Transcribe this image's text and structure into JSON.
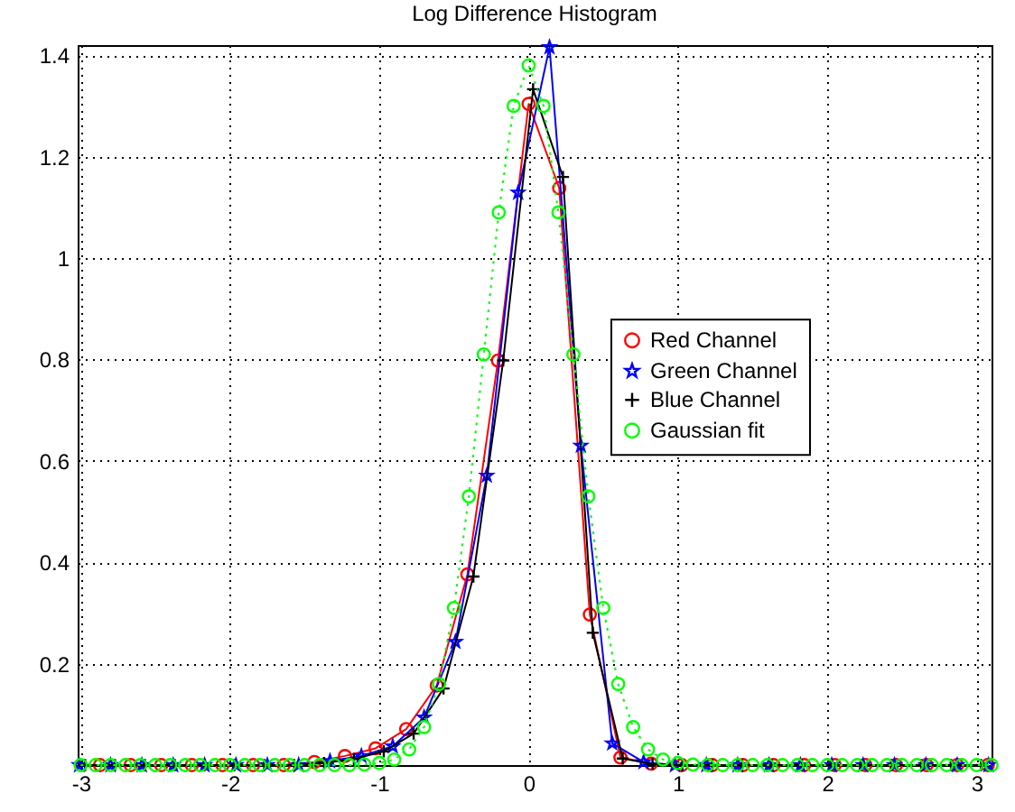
{
  "chart_data": {
    "type": "line",
    "title": "Log Difference Histogram",
    "xlim": [
      -3.02,
      3.1
    ],
    "xticks": [
      -3,
      -2,
      -1,
      0,
      1,
      2,
      3
    ],
    "ylim": [
      0,
      1.42
    ],
    "yticks": [
      {
        "value": 0,
        "label": null
      },
      0.2,
      0.4,
      0.6,
      0.8,
      1,
      1.2,
      1.4
    ],
    "grid": true,
    "legend": "right",
    "series": [
      {
        "name": "Red Channel",
        "color": "#ff0000",
        "marker": "circle",
        "line_style": "solid",
        "x": [
          -2.87,
          -2.665,
          -2.46,
          -2.255,
          -2.05,
          -1.845,
          -1.64,
          -1.435,
          -1.23,
          -1.025,
          -0.82,
          -0.615,
          -0.41,
          -0.205,
          0,
          0.205,
          0.41,
          0.615,
          0.82,
          1.025,
          1.23,
          1.435,
          1.64,
          1.845,
          2.05,
          2.255,
          2.46,
          2.665,
          2.87,
          3.075
        ],
        "values": [
          0,
          0,
          0,
          0,
          0,
          0,
          0,
          0.006,
          0.018,
          0.033,
          0.071,
          0.157,
          0.376,
          0.798,
          1.304,
          1.138,
          0.297,
          0.015,
          0.003,
          0,
          0,
          0,
          0,
          0,
          0,
          0,
          0,
          0,
          0,
          0
        ]
      },
      {
        "name": "Green Channel",
        "color": "#0000ff",
        "marker": "star",
        "line_style": "solid",
        "x": [
          -3.01,
          -2.8,
          -2.59,
          -2.38,
          -2.17,
          -1.96,
          -1.75,
          -1.54,
          -1.33,
          -1.12,
          -0.91,
          -0.7,
          -0.49,
          -0.28,
          -0.07,
          0.14,
          0.35,
          0.56,
          0.77,
          0.98,
          1.19,
          1.4,
          1.61,
          1.82,
          2.03,
          2.24,
          2.45,
          2.66,
          2.87,
          3.08
        ],
        "values": [
          0,
          0,
          0,
          0,
          0,
          0,
          0,
          0,
          0.008,
          0.018,
          0.037,
          0.094,
          0.243,
          0.571,
          1.129,
          1.416,
          0.63,
          0.043,
          0.006,
          0,
          0,
          0,
          0,
          0,
          0,
          0,
          0,
          0,
          0,
          0
        ]
      },
      {
        "name": "Blue Channel",
        "color": "#000000",
        "marker": "cross",
        "line_style": "solid",
        "x": [
          -2.97,
          -2.77,
          -2.57,
          -2.37,
          -2.17,
          -1.97,
          -1.77,
          -1.57,
          -1.37,
          -1.17,
          -0.97,
          -0.77,
          -0.57,
          -0.37,
          -0.17,
          0.03,
          0.23,
          0.43,
          0.63,
          0.83,
          1.03,
          1.23,
          1.43,
          1.63,
          1.83,
          2.03,
          2.23,
          2.43,
          2.63,
          2.83,
          3.03
        ],
        "values": [
          0,
          0,
          0,
          0,
          0,
          0,
          0,
          0,
          0.004,
          0.012,
          0.027,
          0.062,
          0.151,
          0.372,
          0.798,
          1.333,
          1.16,
          0.261,
          0.013,
          0.002,
          0,
          0,
          0,
          0,
          0,
          0,
          0,
          0,
          0,
          0,
          0
        ]
      },
      {
        "name": "Gaussian fit",
        "color": "#00ff00",
        "marker": "circle",
        "line_style": "dotted",
        "x": [
          -3,
          -2.9,
          -2.8,
          -2.7,
          -2.6,
          -2.5,
          -2.4,
          -2.3,
          -2.2,
          -2.1,
          -2,
          -1.9,
          -1.8,
          -1.7,
          -1.6,
          -1.5,
          -1.4,
          -1.3,
          -1.2,
          -1.1,
          -1,
          -0.9,
          -0.8,
          -0.7,
          -0.6,
          -0.5,
          -0.4,
          -0.3,
          -0.2,
          -0.1,
          0,
          0.1,
          0.2,
          0.3,
          0.4,
          0.5,
          0.6,
          0.7,
          0.8,
          0.9,
          1,
          1.1,
          1.2,
          1.3,
          1.4,
          1.5,
          1.6,
          1.7,
          1.8,
          1.9,
          2,
          2.1,
          2.2,
          2.3,
          2.4,
          2.5,
          2.6,
          2.7,
          2.8,
          2.9,
          3,
          3.1
        ],
        "values": [
          0,
          0,
          0,
          0,
          0,
          0,
          0,
          0,
          0,
          0,
          0,
          0,
          0,
          0,
          0,
          0,
          0,
          0,
          0,
          0.001,
          0.004,
          0.011,
          0.031,
          0.075,
          0.16,
          0.31,
          0.53,
          0.81,
          1.09,
          1.3,
          1.38,
          1.3,
          1.09,
          0.81,
          0.53,
          0.31,
          0.16,
          0.075,
          0.031,
          0.011,
          0.004,
          0.001,
          0,
          0,
          0,
          0,
          0,
          0,
          0,
          0,
          0,
          0,
          0,
          0,
          0,
          0,
          0,
          0,
          0,
          0,
          0,
          0
        ]
      }
    ]
  }
}
